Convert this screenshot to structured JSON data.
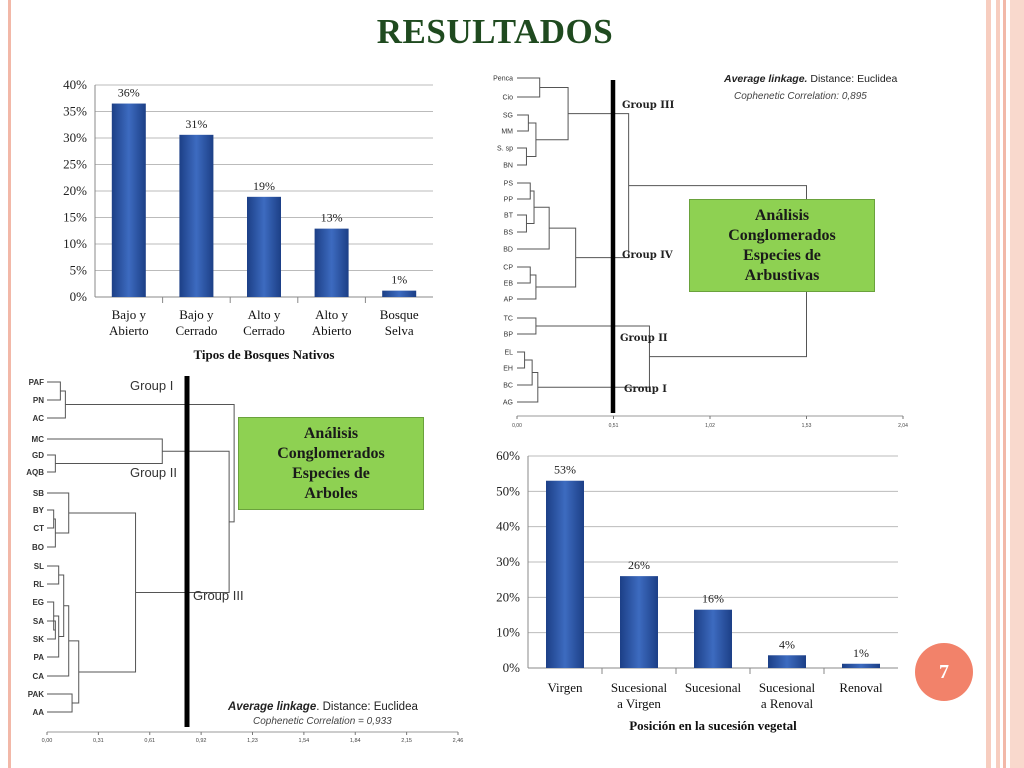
{
  "title": "RESULTADOS",
  "page_number": "7",
  "colors": {
    "bar": "#2d58a6",
    "box": "#8ed152",
    "accent": "#f2826a"
  },
  "chart_data": [
    {
      "type": "bar",
      "title": "",
      "xlabel": "Tipos de Bosques Nativos",
      "ylabel": "",
      "ylim": [
        0,
        40
      ],
      "yticks": [
        "0%",
        "5%",
        "10%",
        "15%",
        "20%",
        "25%",
        "30%",
        "35%",
        "40%"
      ],
      "categories": [
        [
          "Bajo y",
          "Abierto"
        ],
        [
          "Bajo y",
          "Cerrado"
        ],
        [
          "Alto y",
          "Cerrado"
        ],
        [
          "Alto y",
          "Abierto"
        ],
        [
          "Bosque",
          "Selva"
        ]
      ],
      "values": [
        36.5,
        30.6,
        18.9,
        12.9,
        1.2
      ],
      "data_labels": [
        "36%",
        "31%",
        "19%",
        "13%",
        "1%"
      ],
      "grid": true
    },
    {
      "type": "bar",
      "title": "",
      "xlabel": "Posición en la sucesión vegetal",
      "ylabel": "",
      "ylim": [
        0,
        60
      ],
      "yticks": [
        "0%",
        "10%",
        "20%",
        "30%",
        "40%",
        "50%",
        "60%"
      ],
      "categories": [
        [
          "Virgen"
        ],
        [
          "Sucesional",
          "a Virgen"
        ],
        [
          "Sucesional"
        ],
        [
          "Sucesional",
          "a Renoval"
        ],
        [
          "Renoval"
        ]
      ],
      "values": [
        53,
        26,
        16.5,
        3.6,
        1.2
      ],
      "data_labels": [
        "53%",
        "26%",
        "16%",
        "4%",
        "1%"
      ],
      "grid": true
    }
  ],
  "dendro_arbustivas": {
    "leaves": [
      "Penca",
      "Cio",
      "SG",
      "MM",
      "S. sp",
      "BN",
      "PS",
      "PP",
      "BT",
      "BS",
      "BD",
      "CP",
      "EB",
      "AP",
      "TC",
      "BP",
      "EL",
      "EH",
      "BC",
      "AG"
    ],
    "groups": [
      "Group III",
      "Group IV",
      "Group II",
      "Group I"
    ],
    "ticks": [
      "0,00",
      "0,51",
      "1,02",
      "1,53",
      "2,04"
    ],
    "linkage_bold": "Average linkage.",
    "linkage_rest": " Distance: Euclidea",
    "cophenetic": "Cophenetic Correlation: 0,895",
    "box": [
      "Análisis",
      "Conglomerados",
      "Especies de",
      "Arbustivas"
    ]
  },
  "dendro_arboles": {
    "leaves": [
      "PAF",
      "PN",
      "AC",
      "MC",
      "GD",
      "AQB",
      "SB",
      "BY",
      "CT",
      "BO",
      "SL",
      "RL",
      "EG",
      "SA",
      "SK",
      "PA",
      "CA",
      "PAK",
      "AA"
    ],
    "groups": [
      "Group I",
      "Group II",
      "Group III"
    ],
    "ticks": [
      "0,00",
      "0,31",
      "0,61",
      "0,92",
      "1,23",
      "1,54",
      "1,84",
      "2,15",
      "2,46"
    ],
    "linkage_bold": "Average linkage",
    "linkage_rest": ". Distance: Euclidea",
    "cophenetic": "Cophenetic Correlation = 0,933",
    "box": [
      "Análisis",
      "Conglomerados",
      "Especies de",
      "Arboles"
    ]
  }
}
